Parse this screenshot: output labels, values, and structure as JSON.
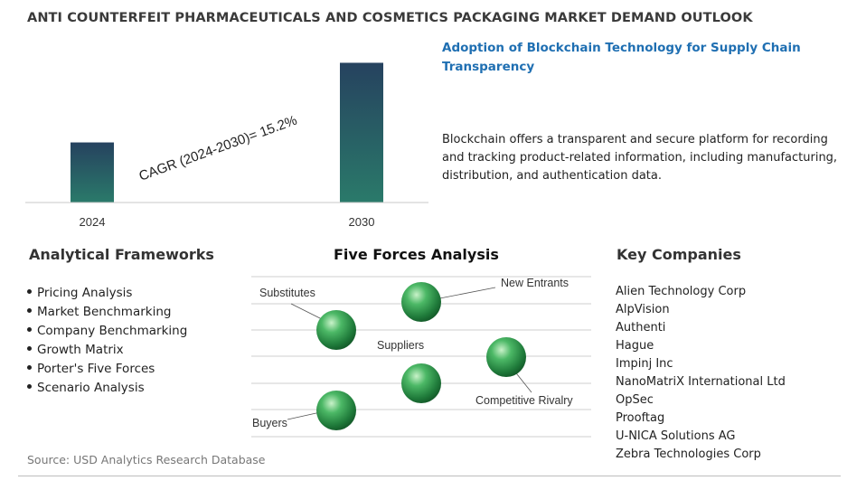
{
  "title": "ANTI COUNTERFEIT PHARMACEUTICALS AND COSMETICS PACKAGING MARKET DEMAND OUTLOOK",
  "chart_data": {
    "type": "bar",
    "categories": [
      "2024",
      "2030"
    ],
    "values": [
      0.43,
      1.0
    ],
    "ylim": [
      0,
      1.1
    ],
    "grid": false,
    "annotation": "CAGR (2024-2030)=  15.2%",
    "colors": {
      "bar_top": "#26425f",
      "bar_bottom": "#2a7a6a",
      "axis": "#c8c8c8"
    }
  },
  "highlight": {
    "title": "Adoption of Blockchain Technology for Supply Chain Transparency",
    "body": "Blockchain offers a transparent and secure platform for recording and tracking product-related information, including manufacturing, distribution, and authentication data."
  },
  "analytical_frameworks": {
    "heading": "Analytical Frameworks",
    "items": [
      "Pricing Analysis",
      "Market Benchmarking",
      "Company Benchmarking",
      "Growth Matrix",
      "Porter's Five Forces",
      "Scenario Analysis"
    ]
  },
  "five_forces": {
    "heading": "Five Forces Analysis",
    "labels": {
      "new_entrants": "New Entrants",
      "substitutes": "Substitutes",
      "suppliers": "Suppliers",
      "competitive_rivalry": "Competitive Rivalry",
      "buyers": "Buyers"
    },
    "colors": {
      "sphere": "#2e9a4a",
      "line": "#cfcfcf"
    }
  },
  "key_companies": {
    "heading": "Key Companies",
    "items": [
      "Alien Technology Corp",
      "AlpVision",
      "Authenti",
      "Hague",
      "Impinj Inc",
      "NanoMatriX International Ltd",
      "OpSec",
      "Prooftag",
      "U-NICA Solutions AG",
      "Zebra Technologies Corp"
    ]
  },
  "source": "Source: USD Analytics Research Database"
}
